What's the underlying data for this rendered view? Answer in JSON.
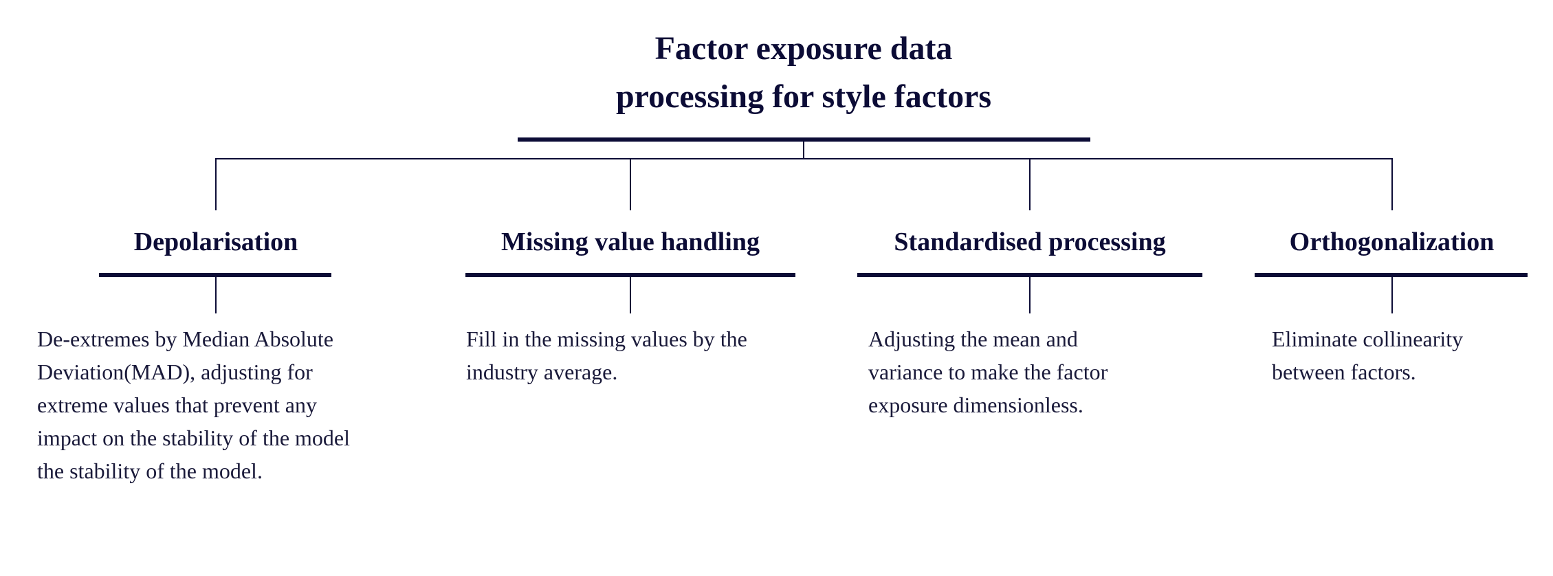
{
  "title": {
    "line1": "Factor exposure data",
    "line2": "processing for style factors"
  },
  "nodes": [
    {
      "label": "Depolarisation",
      "desc_lines": [
        "De-extremes by Median Absolute",
        "Deviation(MAD), adjusting for",
        "extreme values that prevent any",
        "impact on the stability of the model",
        "the stability of the model."
      ]
    },
    {
      "label": "Missing value handling",
      "desc_lines": [
        "Fill in the missing values by the",
        "industry average."
      ]
    },
    {
      "label": "Standardised processing",
      "desc_lines": [
        "Adjusting the mean and",
        "variance to make the factor",
        "exposure dimensionless."
      ]
    },
    {
      "label": "Orthogonalization",
      "desc_lines": [
        "Eliminate collinearity",
        "between factors."
      ]
    }
  ],
  "colors": {
    "ink": "#0c0c36"
  }
}
